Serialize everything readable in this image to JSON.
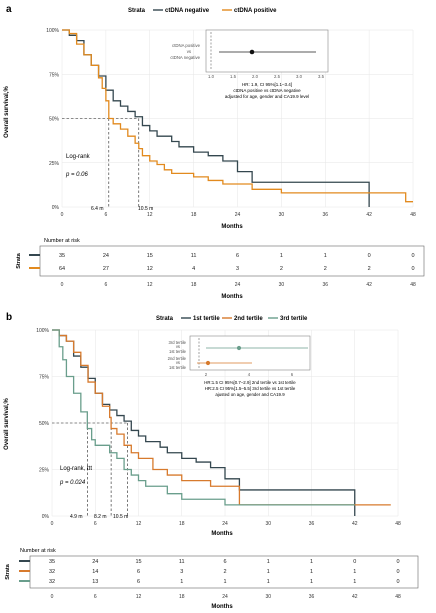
{
  "panels": [
    {
      "letter": "a",
      "strata_title": "Strata",
      "legend": [
        {
          "label": "ctDNA negative",
          "color": "#34474f"
        },
        {
          "label": "ctDNA positive",
          "color": "#e28a1e"
        }
      ],
      "ylabel": "Overall survival,%",
      "xlabel": "Months",
      "yticks": [
        "0%",
        "25%",
        "50%",
        "75%",
        "100%"
      ],
      "xticks": [
        "0",
        "6",
        "12",
        "18",
        "24",
        "30",
        "36",
        "42",
        "48"
      ],
      "logrank_label": "Log-rank",
      "p_label": "p = 0.06",
      "median_labels": [
        "6.4 m",
        "10.5 m"
      ],
      "inset": {
        "row_labels": [
          "ctDNA positive",
          "vs",
          "ctDNA negative"
        ],
        "axis_ticks": [
          "1.0",
          "1.5",
          "2.0",
          "2.5",
          "3.0",
          "3.5"
        ],
        "caption": [
          "HR: 1.9, CI 95%[1.1–3.4]",
          "ctDNA positive vs ctDNA negative",
          "adjusted for age, gender and CA19.9 level"
        ]
      },
      "risk_table": {
        "title": "Number at risk",
        "axis_title": "Strata",
        "xlabel": "Months",
        "xticks": [
          "0",
          "6",
          "12",
          "18",
          "24",
          "30",
          "36",
          "42",
          "48"
        ],
        "rows": [
          {
            "color": "#34474f",
            "values": [
              "35",
              "24",
              "15",
              "11",
              "6",
              "1",
              "1",
              "0",
              "0"
            ]
          },
          {
            "color": "#e28a1e",
            "values": [
              "64",
              "27",
              "12",
              "4",
              "3",
              "2",
              "2",
              "2",
              "0"
            ]
          }
        ]
      }
    },
    {
      "letter": "b",
      "strata_title": "Strata",
      "legend": [
        {
          "label": "1st tertile",
          "color": "#34474f"
        },
        {
          "label": "2nd tertile",
          "color": "#d77a2d"
        },
        {
          "label": "3rd tertile",
          "color": "#6a9e8c"
        }
      ],
      "ylabel": "Overall survival,%",
      "xlabel": "Months",
      "yticks": [
        "0%",
        "25%",
        "50%",
        "75%",
        "100%"
      ],
      "xticks": [
        "0",
        "6",
        "12",
        "18",
        "24",
        "30",
        "36",
        "42",
        "48"
      ],
      "logrank_label": "Log-rank, ttt",
      "p_label": "p = 0.024",
      "median_labels": [
        "4.9 m",
        "8.2 m",
        "10.5 m"
      ],
      "inset": {
        "row_labels": [
          "3rd tertile",
          "vs",
          "1st tertile",
          "2nd tertile",
          "vs",
          "1st tertile"
        ],
        "axis_ticks": [
          "2",
          "4",
          "6"
        ],
        "caption": [
          "HR:1.5 CI 95%[0.7–2.9] 2nd tertile vs 1st tertile",
          "HR:2.5 CI 95%[1.5–5.5] 3rd tertile vs 1st tertile",
          "ajusted on age, gender and CA19.9"
        ]
      },
      "risk_table": {
        "title": "Number at risk",
        "axis_title": "Strata",
        "xlabel": "Months",
        "xticks": [
          "0",
          "6",
          "12",
          "18",
          "24",
          "30",
          "36",
          "42",
          "48"
        ],
        "rows": [
          {
            "color": "#34474f",
            "values": [
              "35",
              "24",
              "15",
              "11",
              "6",
              "1",
              "1",
              "0",
              "0"
            ]
          },
          {
            "color": "#d77a2d",
            "values": [
              "32",
              "14",
              "6",
              "3",
              "2",
              "1",
              "1",
              "1",
              "0"
            ]
          },
          {
            "color": "#6a9e8c",
            "values": [
              "32",
              "13",
              "6",
              "1",
              "1",
              "1",
              "1",
              "1",
              "0"
            ]
          }
        ]
      }
    }
  ],
  "chart_data": [
    {
      "type": "line",
      "title": "",
      "xlabel": "Months",
      "ylabel": "Overall survival,%",
      "xlim": [
        0,
        48
      ],
      "ylim": [
        0,
        100
      ],
      "grid": true,
      "legend_position": "top",
      "step": true,
      "series": [
        {
          "name": "ctDNA negative",
          "color": "#34474f",
          "x": [
            0,
            1,
            2,
            3,
            4,
            5,
            6,
            7,
            8,
            9,
            10,
            11,
            12,
            13,
            15,
            16,
            18,
            20,
            22,
            24,
            26,
            30,
            32,
            36,
            42
          ],
          "y": [
            100,
            97,
            94,
            86,
            80,
            74,
            66,
            60,
            57,
            54,
            51,
            46,
            43,
            40,
            37,
            34,
            31,
            29,
            26,
            20,
            14,
            14,
            14,
            14,
            0
          ]
        },
        {
          "name": "ctDNA positive",
          "color": "#e28a1e",
          "x": [
            0,
            1,
            2,
            3,
            4,
            5,
            5.5,
            6,
            6.4,
            7,
            8,
            9,
            10,
            10.5,
            11,
            12,
            13,
            14,
            15,
            18,
            20,
            22,
            26,
            30,
            42,
            47,
            48
          ],
          "y": [
            100,
            98,
            92,
            86,
            80,
            73,
            67,
            60,
            50,
            47,
            44,
            40,
            36,
            33,
            29,
            26,
            24,
            21,
            19,
            17,
            15,
            13,
            10,
            8,
            8,
            3,
            3
          ]
        }
      ]
    },
    {
      "type": "line",
      "title": "",
      "xlabel": "Months",
      "ylabel": "Overall survival,%",
      "xlim": [
        0,
        48
      ],
      "ylim": [
        0,
        100
      ],
      "grid": true,
      "legend_position": "top",
      "step": true,
      "series": [
        {
          "name": "1st tertile",
          "color": "#34474f",
          "x": [
            0,
            1,
            2,
            3,
            4,
            5,
            6,
            7,
            8,
            9,
            10,
            11,
            12,
            13,
            15,
            16,
            18,
            20,
            22,
            24,
            26,
            30,
            32,
            36,
            42
          ],
          "y": [
            100,
            97,
            94,
            86,
            80,
            74,
            66,
            60,
            57,
            54,
            51,
            46,
            43,
            40,
            37,
            34,
            31,
            29,
            26,
            20,
            14,
            14,
            14,
            14,
            0
          ]
        },
        {
          "name": "2nd tertile",
          "color": "#d77a2d",
          "x": [
            0,
            1,
            2,
            3,
            4,
            5,
            6,
            7,
            8,
            8.2,
            9,
            10,
            11,
            12,
            14,
            16,
            18,
            22,
            26,
            47
          ],
          "y": [
            100,
            97,
            94,
            88,
            81,
            72,
            66,
            59,
            53,
            47,
            44,
            38,
            34,
            31,
            25,
            22,
            19,
            16,
            6,
            6
          ]
        },
        {
          "name": "3rd tertile",
          "color": "#6a9e8c",
          "x": [
            0,
            1,
            1.5,
            2,
            3,
            4,
            4.9,
            5.5,
            6,
            8,
            9,
            10,
            11,
            12,
            13,
            16,
            18,
            21,
            24,
            42
          ],
          "y": [
            100,
            91,
            84,
            75,
            66,
            56,
            47,
            41,
            38,
            34,
            31,
            25,
            22,
            19,
            16,
            12,
            9,
            9,
            6,
            6
          ]
        }
      ]
    }
  ]
}
